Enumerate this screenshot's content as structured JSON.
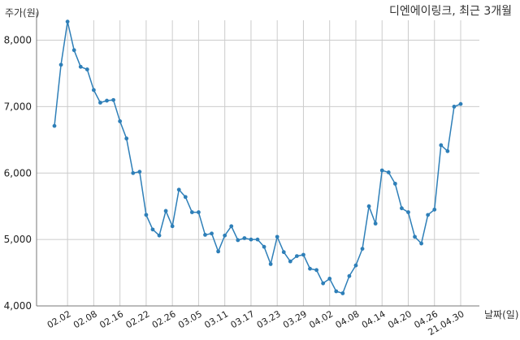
{
  "chart_data": {
    "type": "line",
    "title": "디엔에이링크, 최근 3개월",
    "ylabel": "주가(원)",
    "xlabel": "날짜(일)",
    "ylim": [
      4000,
      8300
    ],
    "yticks": [
      4000,
      5000,
      6000,
      7000,
      8000
    ],
    "ytick_labels": [
      "4,000",
      "5,000",
      "6,000",
      "7,000",
      "8,000"
    ],
    "xtick_labels": [
      "02.02",
      "02.08",
      "02.16",
      "02.22",
      "02.26",
      "03.05",
      "03.11",
      "03.17",
      "03.23",
      "03.29",
      "04.02",
      "04.08",
      "04.14",
      "04.20",
      "04.26",
      "21.04.30"
    ],
    "xtick_index": [
      2,
      6,
      10,
      14,
      18,
      22,
      26,
      30,
      34,
      38,
      42,
      46,
      50,
      54,
      58,
      62
    ],
    "grid": true,
    "color": "#2e7fb8",
    "series": [
      {
        "values": [
          6710,
          7630,
          8280,
          7850,
          7600,
          7560,
          7250,
          7060,
          7090,
          7100,
          6780,
          6520,
          6000,
          6020,
          5370,
          5150,
          5060,
          5430,
          5200,
          5750,
          5640,
          5410,
          5410,
          5070,
          5090,
          4820,
          5060,
          5200,
          4990,
          5020,
          5000,
          5000,
          4890,
          4630,
          5040,
          4810,
          4670,
          4750,
          4770,
          4560,
          4540,
          4340,
          4410,
          4220,
          4190,
          4450,
          4610,
          4860,
          5500,
          5240,
          6040,
          6010,
          5840,
          5470,
          5410,
          5040,
          4940,
          5370,
          5450,
          6420,
          6330,
          7000,
          7040
        ]
      }
    ]
  }
}
